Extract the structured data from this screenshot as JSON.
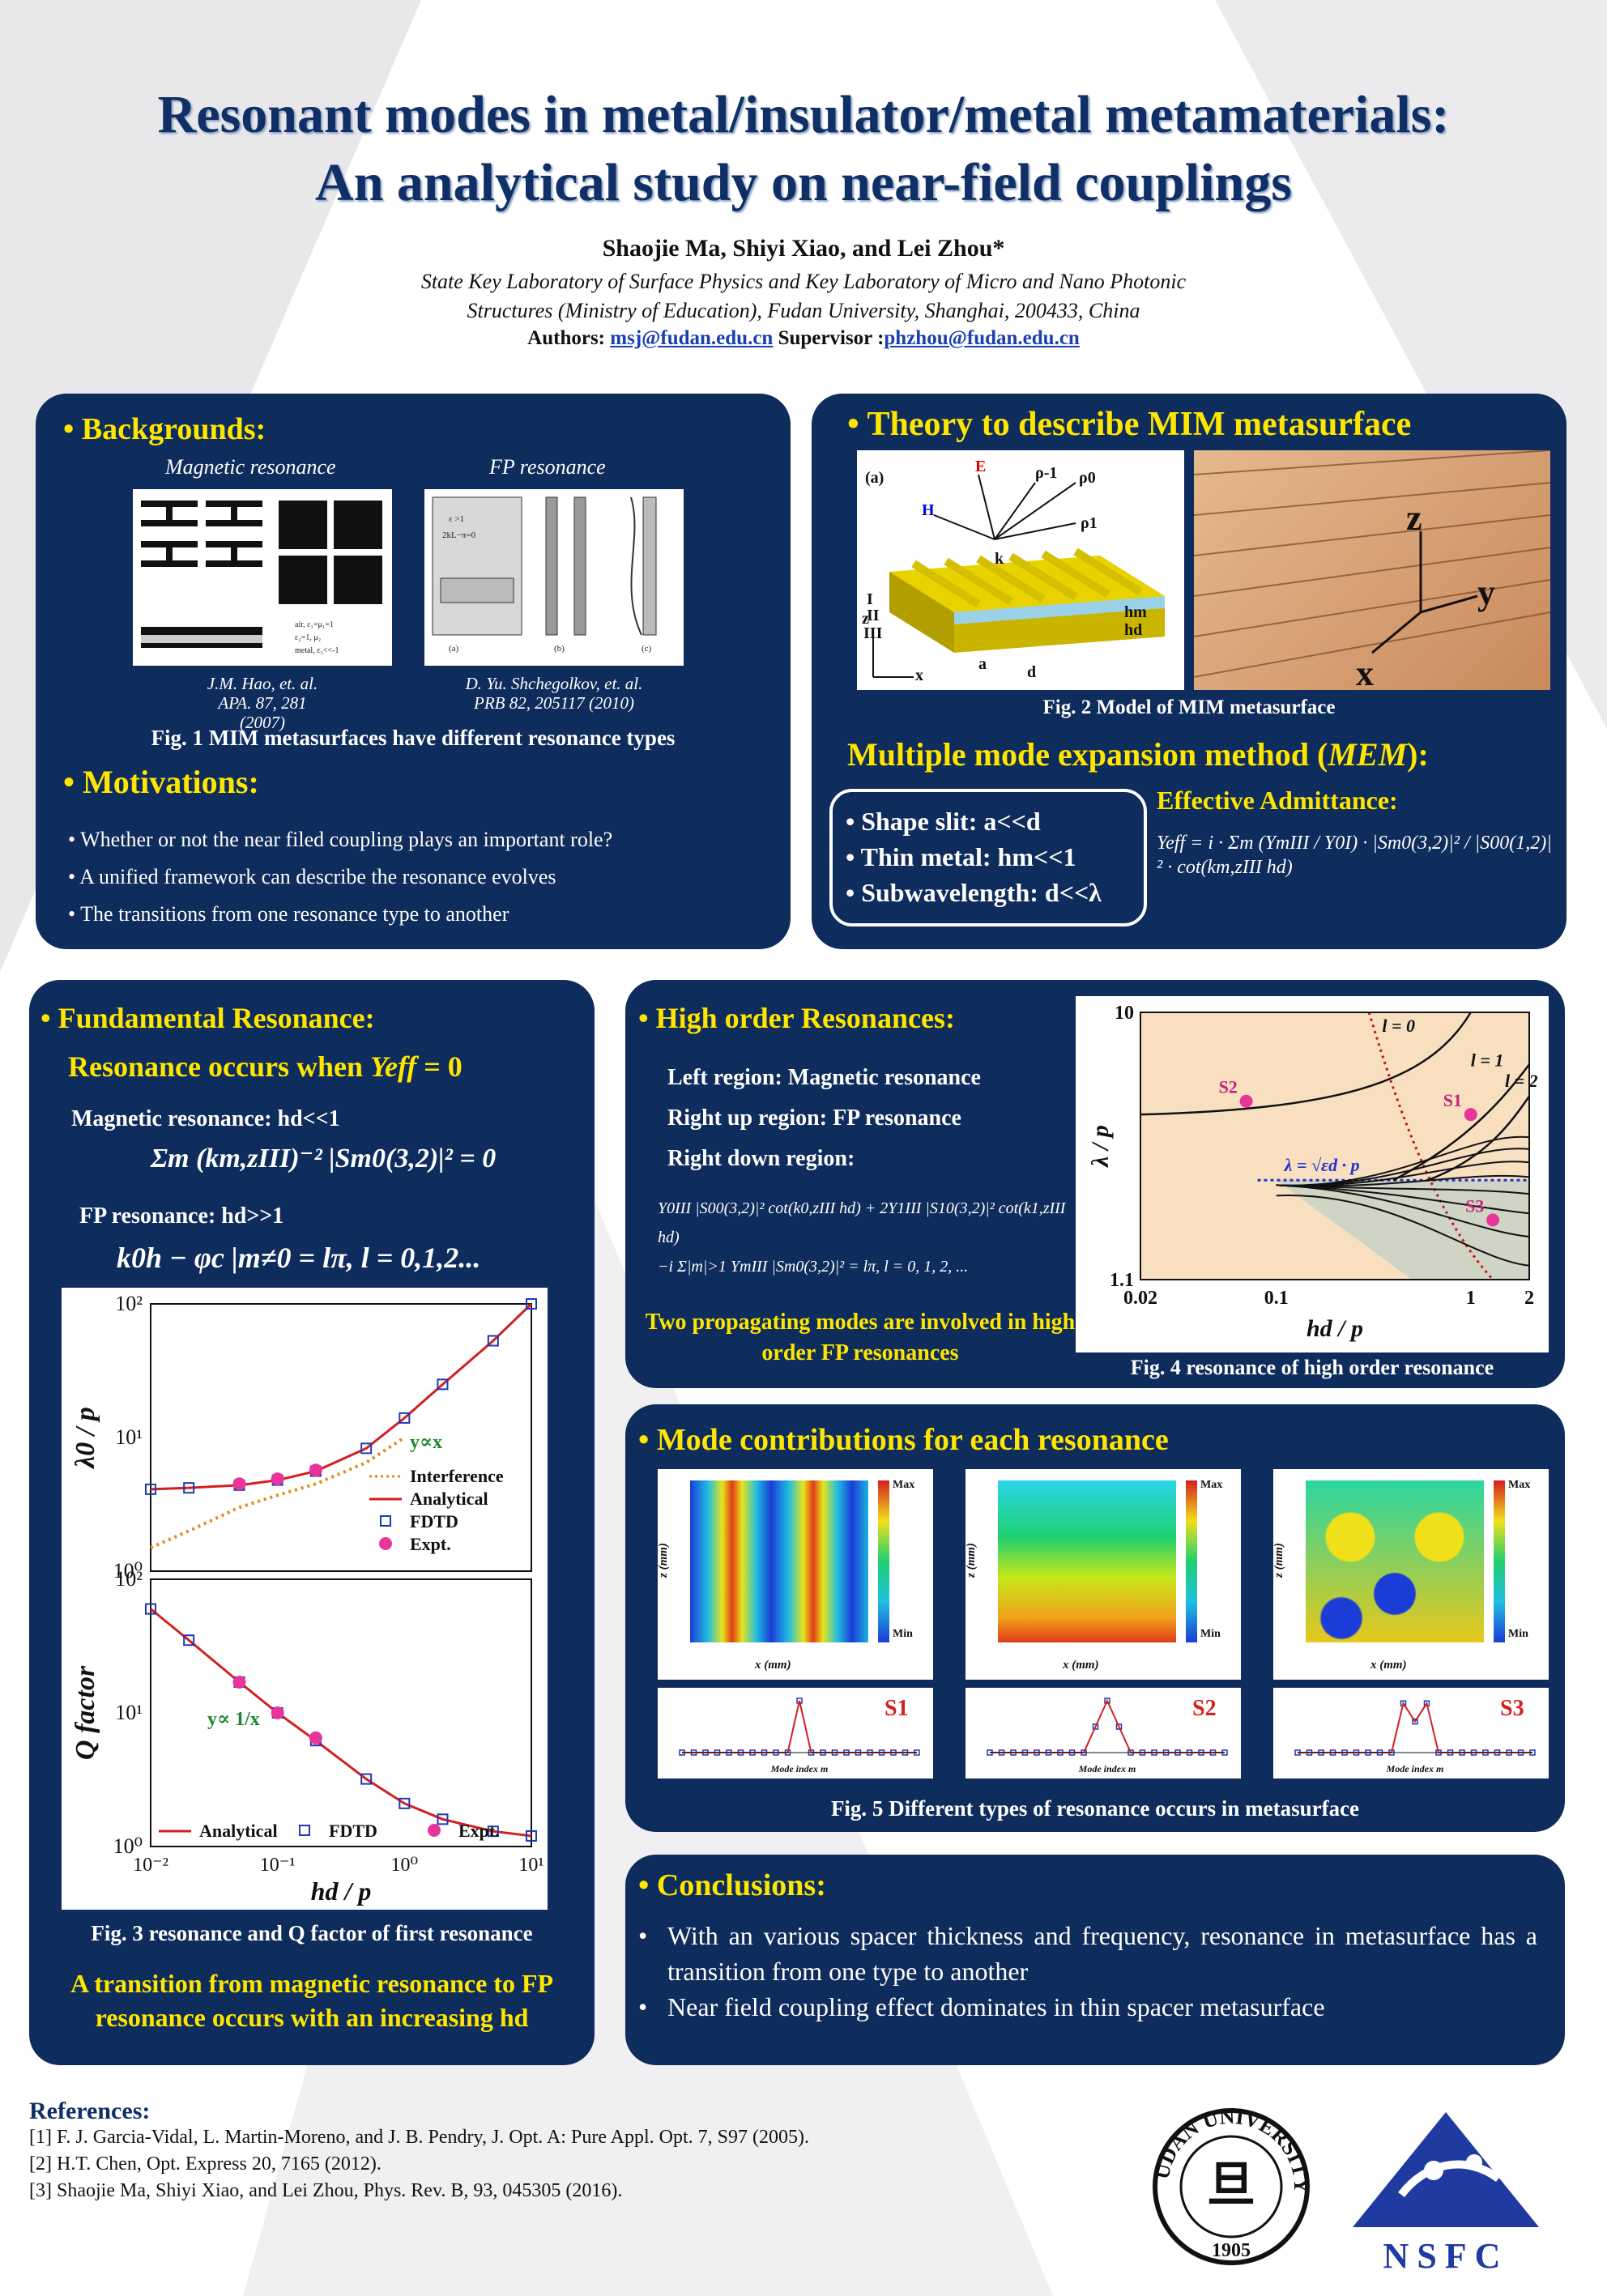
{
  "title": {
    "line1": "Resonant modes in metal/insulator/metal metamaterials:",
    "line2": "An analytical study on near-field couplings"
  },
  "authors": "Shaojie Ma, Shiyi Xiao, and Lei Zhou*",
  "affiliation": {
    "line1": "State Key Laboratory of Surface Physics and Key Laboratory of Micro and Nano Photonic",
    "line2": "Structures (Ministry of Education), Fudan University, Shanghai, 200433, China"
  },
  "contacts": {
    "authors_label": "Authors:",
    "author_email": "msj@fudan.edu.cn",
    "supervisor_label": "Supervisor :",
    "supervisor_email": "phzhou@fudan.edu.cn"
  },
  "backgrounds": {
    "heading": "Backgrounds:",
    "sub_magnetic": "Magnetic resonance",
    "sub_fp": "FP resonance",
    "ref_left_1": "J.M. Hao, et. al.",
    "ref_left_2": "APA. 87, 281 (2007)",
    "ref_right_1": "D. Yu. Shchegolkov, et. al.",
    "ref_right_2": "PRB 82, 205117 (2010)",
    "fig_caption": "Fig. 1 MIM metasurfaces have different resonance types"
  },
  "motivations": {
    "heading": "Motivations:",
    "items": [
      "Whether or not the near filed coupling plays an important role?",
      "A unified framework can describe the resonance evolves",
      "The transitions from one resonance type to another"
    ]
  },
  "theory": {
    "heading": "Theory to describe MIM metasurface",
    "fig_caption": "Fig. 2 Model of MIM metasurface",
    "mem_title_pre": "Multiple mode expansion method (",
    "mem_title_em": "MEM",
    "mem_title_post": "):",
    "conditions": [
      "Shape slit: a<<d",
      "Thin metal: hm<<1",
      "Subwavelength: d<<λ"
    ],
    "admittance_label": "Effective Admittance:",
    "admittance_formula": "Yeff = i · Σm (YmIII / Y0I) · |Sm0(3,2)|² / |S00(1,2)|² · cot(km,zIII hd)"
  },
  "fundamental": {
    "heading": "Fundamental Resonance:",
    "condition_pre": "Resonance occurs when ",
    "condition_var": "Yeff",
    "condition_post": " = 0",
    "magnetic_label": "Magnetic resonance: hd<<1",
    "magnetic_formula": "Σm (km,zIII)⁻² |Sm0(3,2)|² = 0",
    "fp_label": "FP resonance: hd>>1",
    "fp_formula": "k0h − φc |m≠0 = lπ,  l = 0,1,2...",
    "fig_caption": "Fig. 3 resonance and Q factor of first resonance",
    "conclusion": "A transition from magnetic resonance to FP resonance occurs with an increasing hd"
  },
  "high_order": {
    "heading": "High order Resonances:",
    "left_region": "Left region: Magnetic resonance",
    "right_up": "Right up region: FP resonance",
    "right_down": "Right down region:",
    "formula_1": "Y0III |S00(3,2)|² cot(k0,zIII hd) + 2Y1III |S10(3,2)|² cot(k1,zIII hd)",
    "formula_2": "−i Σ|m|>1 YmIII |Sm0(3,2)|² = lπ,    l = 0, 1, 2, ...",
    "note": "Two propagating modes are involved in high order FP resonances",
    "fig_caption": "Fig. 4 resonance of high order resonance"
  },
  "mode_contrib": {
    "heading": "Mode contributions for each resonance",
    "fig_caption": "Fig. 5 Different types of resonance occurs in metasurface",
    "labels": [
      "S1",
      "S2",
      "S3"
    ],
    "colorbar_max": "Max",
    "colorbar_min": "Min",
    "x_label": "x (mm)",
    "z_label": "z (mm)",
    "mode_index_label": "Mode index m"
  },
  "conclusions": {
    "heading": "Conclusions:",
    "items": [
      "With an various spacer thickness and frequency, resonance in metasurface has a transition from one type to another",
      "Near field coupling effect dominates in thin spacer metasurface"
    ]
  },
  "references": {
    "heading": "References:",
    "items": [
      "[1] F. J. Garcia-Vidal, L. Martin-Moreno, and J. B. Pendry, J. Opt. A: Pure Appl. Opt. 7, S97 (2005).",
      "[2] H.T. Chen, Opt. Express 20, 7165 (2012).",
      "[3] Shaojie Ma, Shiyi Xiao, and Lei Zhou, Phys. Rev. B, 93, 045305 (2016)."
    ]
  },
  "logos": {
    "fudan_ring": "FUDAN UNIVERSITY",
    "fudan_year": "1905",
    "nsfc": "NSFC"
  },
  "chart_data": [
    {
      "type": "scatter",
      "title": "",
      "xlabel": "hd / p",
      "ylabel": "λ0 / p",
      "xscale": "log",
      "yscale": "log",
      "xlim": [
        0.01,
        10
      ],
      "ylim": [
        1,
        100
      ],
      "legend": [
        "Interference",
        "Analytical",
        "FDTD",
        "Expt."
      ],
      "annotation": "y∝x",
      "series": [
        {
          "name": "Analytical",
          "x": [
            0.01,
            0.02,
            0.05,
            0.1,
            0.2,
            0.5,
            1,
            2,
            5,
            10
          ],
          "y": [
            4.1,
            4.2,
            4.4,
            4.8,
            5.6,
            8.3,
            14,
            25,
            53,
            100
          ]
        },
        {
          "name": "FDTD",
          "x": [
            0.01,
            0.02,
            0.05,
            0.1,
            0.2,
            0.5,
            1,
            2,
            5,
            10
          ],
          "y": [
            4.1,
            4.2,
            4.4,
            4.8,
            5.6,
            8.3,
            14,
            25,
            53,
            100
          ]
        },
        {
          "name": "Expt.",
          "x": [
            0.05,
            0.1,
            0.2
          ],
          "y": [
            4.5,
            4.9,
            5.7
          ]
        },
        {
          "name": "Interference",
          "x": [
            0.01,
            0.02,
            0.05,
            0.1,
            0.2,
            0.5,
            1
          ],
          "y": [
            1.5,
            2.0,
            3.0,
            3.7,
            4.5,
            6.5,
            10
          ]
        }
      ]
    },
    {
      "type": "scatter",
      "title": "",
      "xlabel": "hd / p",
      "ylabel": "Q factor",
      "xscale": "log",
      "yscale": "log",
      "xlim": [
        0.01,
        10
      ],
      "ylim": [
        1,
        100
      ],
      "legend": [
        "Analytical",
        "FDTD",
        "Expt."
      ],
      "annotation": "y∝ 1/x",
      "series": [
        {
          "name": "Analytical",
          "x": [
            0.01,
            0.02,
            0.05,
            0.1,
            0.2,
            0.5,
            1,
            2,
            5,
            10
          ],
          "y": [
            60,
            35,
            17,
            10,
            6.2,
            3.2,
            2.1,
            1.6,
            1.3,
            1.2
          ]
        },
        {
          "name": "FDTD",
          "x": [
            0.01,
            0.02,
            0.05,
            0.1,
            0.2,
            0.5,
            1,
            2,
            5,
            10
          ],
          "y": [
            60,
            35,
            17,
            10,
            6.2,
            3.2,
            2.1,
            1.6,
            1.3,
            1.2
          ]
        },
        {
          "name": "Expt.",
          "x": [
            0.05,
            0.1,
            0.2
          ],
          "y": [
            17,
            10,
            6.5
          ]
        }
      ]
    },
    {
      "type": "line",
      "title": "",
      "xlabel": "hd / p",
      "ylabel": "λ / p",
      "xscale": "log",
      "yscale": "log",
      "xlim": [
        0.02,
        2
      ],
      "ylim": [
        1.1,
        10
      ],
      "annotations": [
        "l = 0",
        "l = 1",
        "l = 2",
        "S1",
        "S2",
        "S3",
        "λ = √εd · p"
      ],
      "points": [
        {
          "name": "S1",
          "x": 1.0,
          "y": 4.3
        },
        {
          "name": "S2",
          "x": 0.07,
          "y": 4.8
        },
        {
          "name": "S3",
          "x": 1.3,
          "y": 1.8
        }
      ]
    }
  ]
}
